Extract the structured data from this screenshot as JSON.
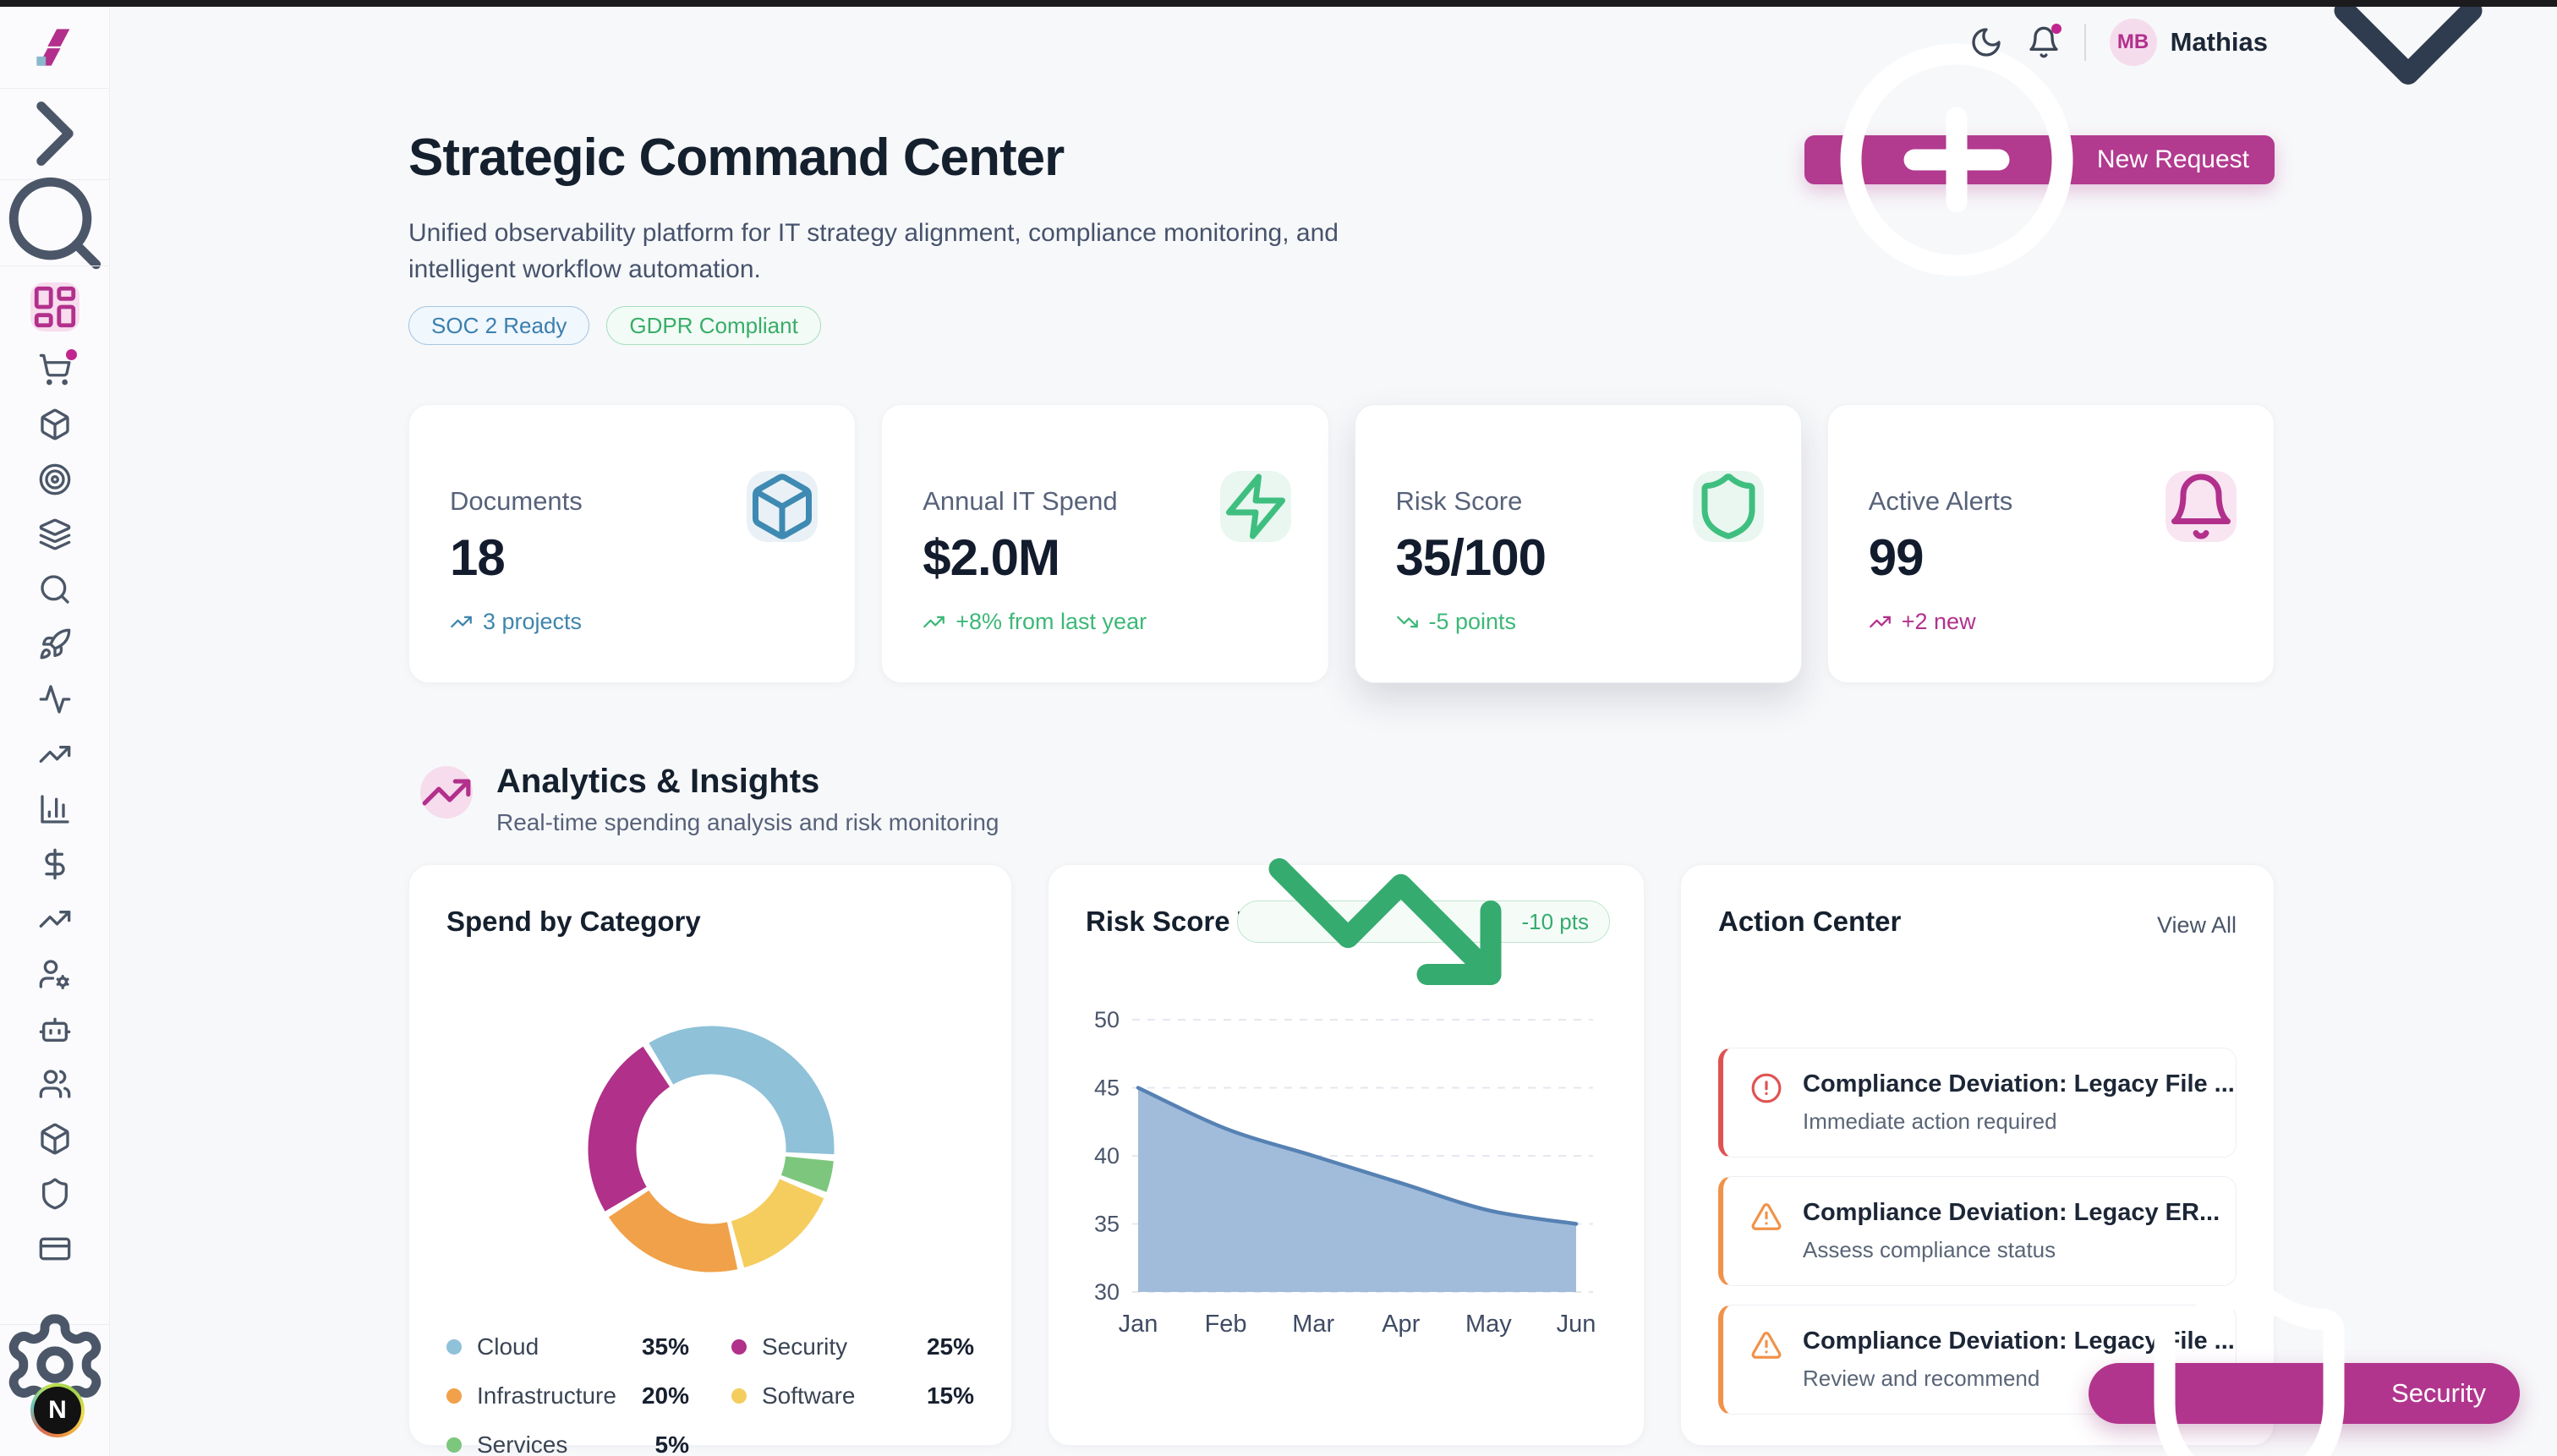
{
  "header": {
    "user_initials": "MB",
    "user_name": "Mathias"
  },
  "sidebar": {
    "nav_icons": [
      "layout-dashboard-icon",
      "cart-icon",
      "package-icon",
      "target-icon",
      "layers-icon",
      "search-icon",
      "rocket-icon",
      "activity-icon",
      "trending-up-icon",
      "bar-chart-icon",
      "dollar-icon",
      "trending-up-icon",
      "user-cog-icon",
      "bot-icon",
      "users-icon",
      "package-icon",
      "shield-icon",
      "credit-card-icon"
    ],
    "active_index": 0,
    "badge_index": 1,
    "dev_badge": "N"
  },
  "hero": {
    "title": "Strategic Command Center",
    "subtitle": "Unified observability platform for IT strategy alignment, compliance monitoring, and intelligent workflow automation.",
    "badges": [
      {
        "label": "SOC 2 Ready"
      },
      {
        "label": "GDPR Compliant"
      }
    ],
    "new_request_label": "New Request"
  },
  "stats": {
    "documents": {
      "label": "Documents",
      "value": "18",
      "delta": "3 projects"
    },
    "spend": {
      "label": "Annual IT Spend",
      "value": "$2.0M",
      "delta": "+8% from last year"
    },
    "risk": {
      "label": "Risk Score",
      "value": "35/100",
      "delta": "-5 points"
    },
    "alerts": {
      "label": "Active Alerts",
      "value": "99",
      "delta": "+2 new"
    }
  },
  "analytics": {
    "title": "Analytics & Insights",
    "subtitle": "Real-time spending analysis and risk monitoring"
  },
  "chart_data": [
    {
      "type": "pie",
      "title": "Spend by Category",
      "donut": true,
      "categories": [
        "Cloud",
        "Security",
        "Infrastructure",
        "Software",
        "Services"
      ],
      "values": [
        35,
        25,
        20,
        15,
        5
      ],
      "value_labels": [
        "35%",
        "25%",
        "20%",
        "15%",
        "5%"
      ],
      "colors": {
        "Cloud": "#8fc1d9",
        "Security": "#b0308a",
        "Infrastructure": "#f0a149",
        "Software": "#f5cd5f",
        "Services": "#7cc77d"
      },
      "clockwise_order": [
        "Cloud",
        "Services",
        "Software",
        "Infrastructure",
        "Security"
      ],
      "start_angle_deg_from_top": -32,
      "legend_position": "bottom"
    },
    {
      "type": "area",
      "title": "Risk Score Trend",
      "badge": "-10 pts",
      "x": [
        "Jan",
        "Feb",
        "Mar",
        "Apr",
        "May",
        "Jun"
      ],
      "values": [
        45,
        42,
        40,
        38,
        36,
        35
      ],
      "ylim": [
        30,
        50
      ],
      "yticks": [
        30,
        35,
        40,
        45,
        50
      ],
      "grid": "dashed-horizontal",
      "line_color": "#5681b3",
      "fill_color": "#9cb8d9"
    }
  ],
  "action_center": {
    "title": "Action Center",
    "view_all_label": "View All",
    "items": [
      {
        "severity": "critical",
        "title": "Compliance Deviation: Legacy File ...",
        "subtitle": "Immediate action required"
      },
      {
        "severity": "warning",
        "title": "Compliance Deviation: Legacy ER...",
        "subtitle": "Assess compliance status"
      },
      {
        "severity": "warning",
        "title": "Compliance Deviation: Legacy File ...",
        "subtitle": "Review and recommend"
      }
    ]
  },
  "floating": {
    "security_label": "Security"
  },
  "colors": {
    "accent": "#b2308c",
    "success": "#3cb878",
    "danger": "#e05252",
    "warning": "#f0924a",
    "info_blue": "#3e85ad"
  }
}
